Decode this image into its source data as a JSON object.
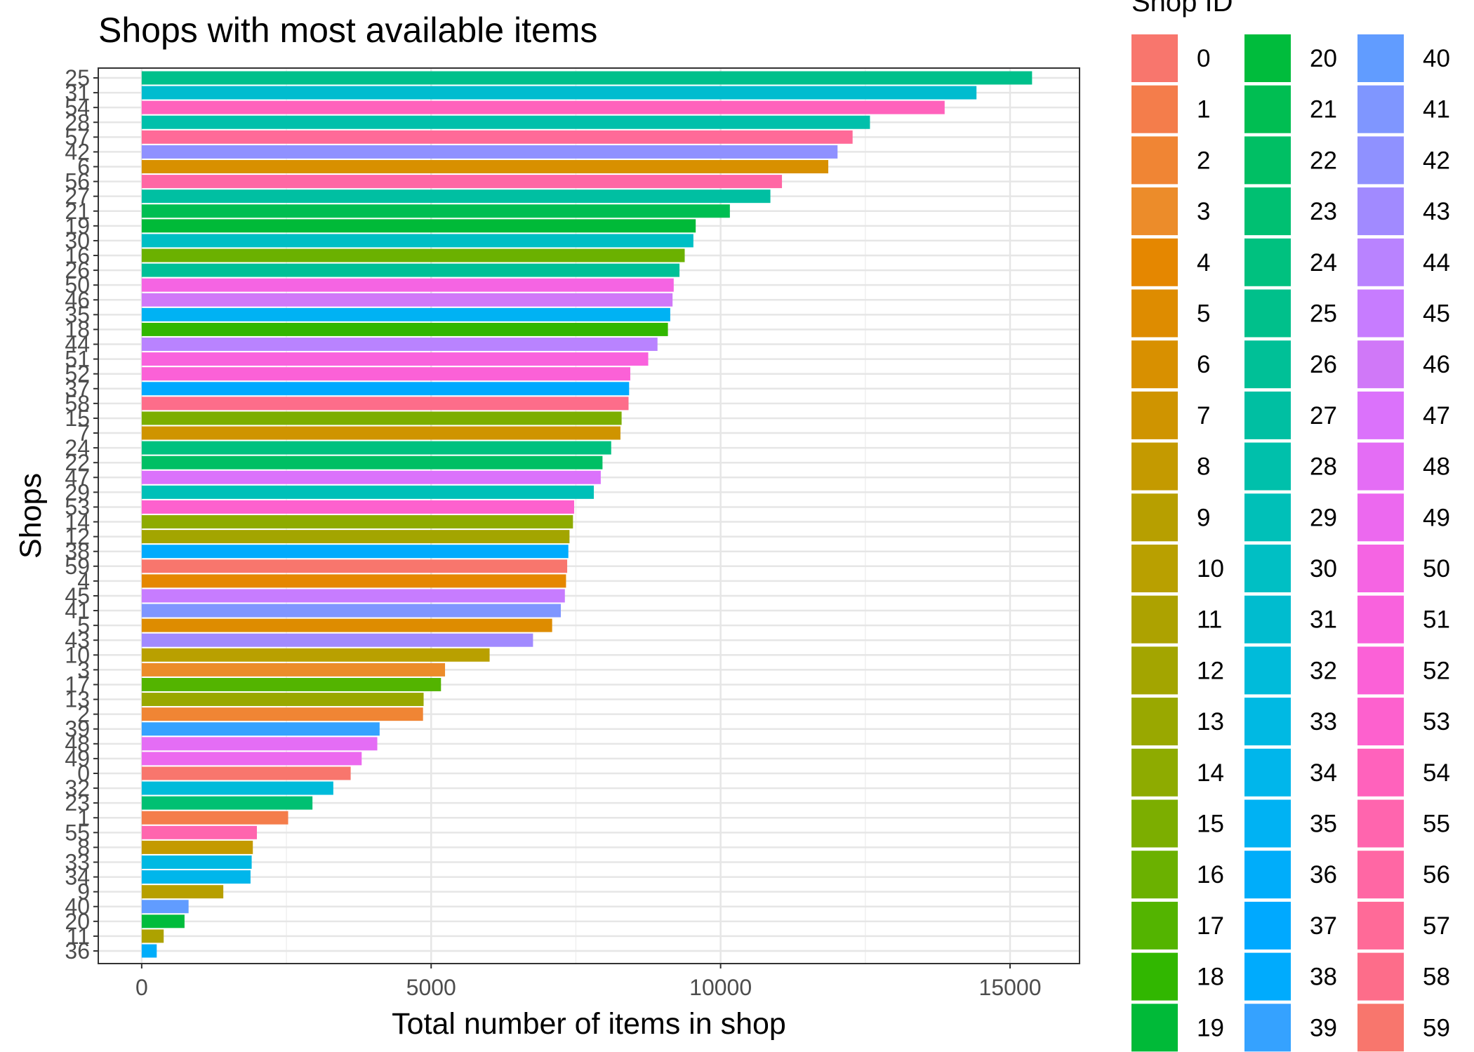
{
  "chart_data": {
    "type": "bar",
    "orientation": "horizontal",
    "title": "Shops with most available items",
    "xlabel": "Total number of items in shop",
    "ylabel": "Shops",
    "xlim": [
      -750,
      16200
    ],
    "xticks": [
      0,
      5000,
      10000,
      15000
    ],
    "grid": true,
    "legend_title": "Shop ID",
    "legend_position": "right",
    "legend_columns": 3,
    "categories": [
      "25",
      "31",
      "54",
      "28",
      "57",
      "42",
      "6",
      "56",
      "27",
      "21",
      "19",
      "30",
      "16",
      "26",
      "50",
      "46",
      "35",
      "18",
      "44",
      "51",
      "52",
      "37",
      "58",
      "15",
      "7",
      "24",
      "22",
      "47",
      "29",
      "53",
      "14",
      "12",
      "38",
      "59",
      "4",
      "45",
      "41",
      "5",
      "43",
      "10",
      "3",
      "17",
      "13",
      "2",
      "39",
      "48",
      "49",
      "0",
      "32",
      "23",
      "1",
      "55",
      "8",
      "33",
      "34",
      "9",
      "40",
      "20",
      "11",
      "36"
    ],
    "values": [
      15380,
      14420,
      13870,
      12580,
      12280,
      12020,
      11860,
      11060,
      10860,
      10160,
      9570,
      9530,
      9380,
      9290,
      9190,
      9170,
      9130,
      9090,
      8910,
      8750,
      8440,
      8420,
      8410,
      8290,
      8270,
      8110,
      7960,
      7930,
      7810,
      7470,
      7450,
      7390,
      7370,
      7350,
      7330,
      7310,
      7240,
      7090,
      6760,
      6010,
      5240,
      5170,
      4870,
      4860,
      4110,
      4070,
      3800,
      3610,
      3310,
      2950,
      2530,
      1990,
      1920,
      1900,
      1880,
      1410,
      810,
      740,
      380,
      260
    ],
    "legend": [
      "0",
      "1",
      "2",
      "3",
      "4",
      "5",
      "6",
      "7",
      "8",
      "9",
      "10",
      "11",
      "12",
      "13",
      "14",
      "15",
      "16",
      "17",
      "18",
      "19",
      "20",
      "21",
      "22",
      "23",
      "24",
      "25",
      "26",
      "27",
      "28",
      "29",
      "30",
      "31",
      "32",
      "33",
      "34",
      "35",
      "36",
      "37",
      "38",
      "39",
      "40",
      "41",
      "42",
      "43",
      "44",
      "45",
      "46",
      "47",
      "48",
      "49",
      "50",
      "51",
      "52",
      "53",
      "54",
      "55",
      "56",
      "57",
      "58",
      "59"
    ],
    "colors": [
      "#F8766D",
      "#F47D4B",
      "#F08534",
      "#EC8C2A",
      "#E58700",
      "#DE8C00",
      "#D89000",
      "#CF9400",
      "#C49A00",
      "#B79F00",
      "#B9A000",
      "#ADA200",
      "#A3A500",
      "#99A800",
      "#8EAB00",
      "#7CAE00",
      "#6BB100",
      "#53B400",
      "#31B700",
      "#00BA38",
      "#00BC3C",
      "#00BE52",
      "#00BF64",
      "#00C072",
      "#00C17F",
      "#00C08B",
      "#00C097",
      "#00BFA2",
      "#00C0AB",
      "#00C0B8",
      "#00BFC4",
      "#00BCCF",
      "#00BBDA",
      "#00B9E3",
      "#00B6EB",
      "#00B2F3",
      "#00ADFA",
      "#00A9FF",
      "#00ABFD",
      "#35A2FF",
      "#619CFF",
      "#7F96FF",
      "#8F91FF",
      "#A18AFF",
      "#B983FF",
      "#C77CFF",
      "#D078F8",
      "#DB72FB",
      "#E46DF5",
      "#EC69EF",
      "#F564E3",
      "#F962DD",
      "#FB61D7",
      "#FD61CE",
      "#FF62BC",
      "#FF65AE",
      "#FF67A4",
      "#FF6A98",
      "#FD6D8A",
      "#F8766D"
    ]
  }
}
